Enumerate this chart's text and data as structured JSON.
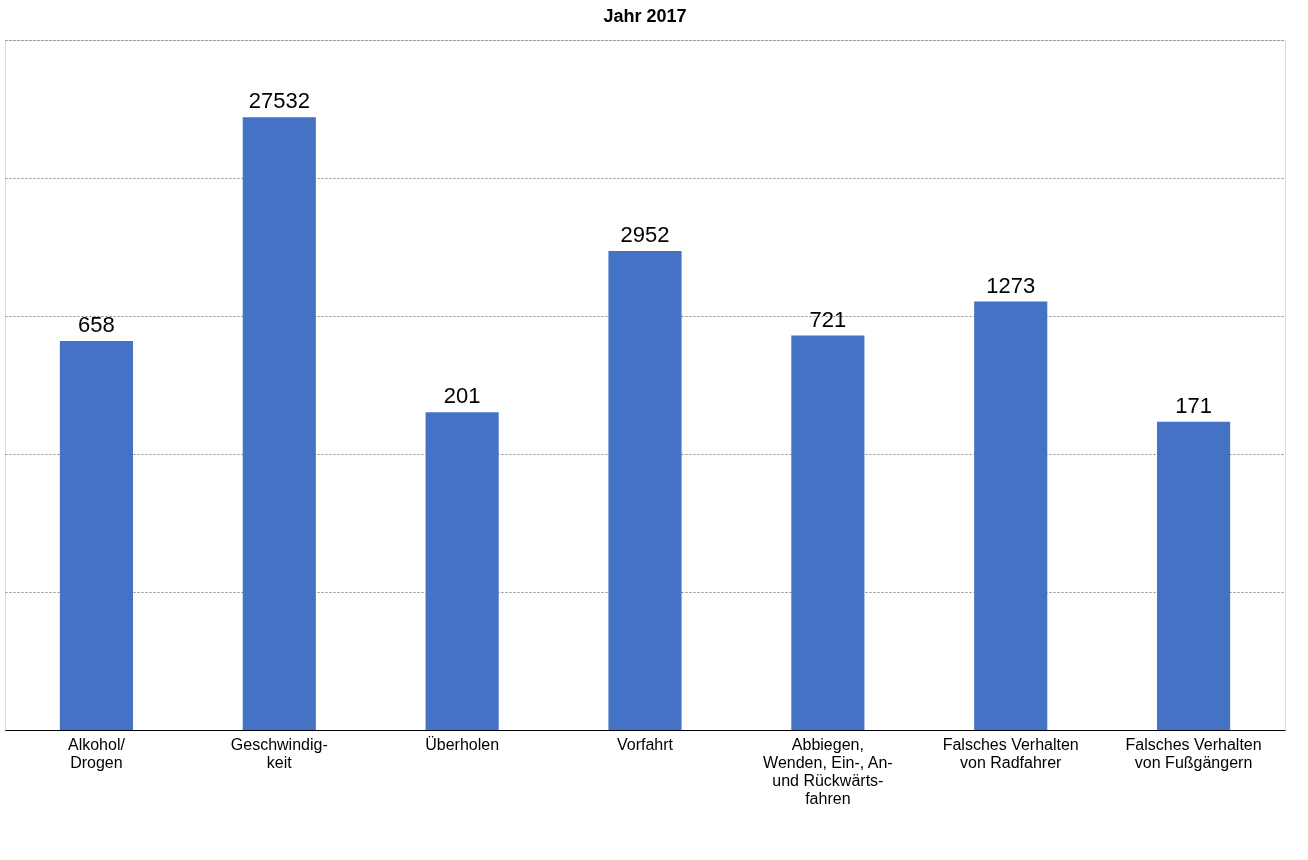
{
  "chart_data": {
    "type": "bar",
    "title": "Jahr 2017",
    "categories": [
      "Alkohol/\nDrogen",
      "Geschwindig-\nkeit",
      "Überholen",
      "Vorfahrt",
      "Abbiegen,\nWenden, Ein-, An-\nund Rückwärts-\nfahren",
      "Falsches Verhalten\nvon Radfahrer",
      "Falsches Verhalten\nvon Fußgängern"
    ],
    "values": [
      658,
      27532,
      201,
      2952,
      721,
      1273,
      171
    ],
    "color": "#4472c4",
    "log": true,
    "ylim": [
      1,
      100000
    ],
    "yticks": [
      {
        "value": 1,
        "label": null
      },
      {
        "value": 10,
        "label": null
      },
      {
        "value": 100,
        "label": null
      },
      {
        "value": 1000,
        "label": null
      },
      {
        "value": 10000,
        "label": null
      },
      {
        "value": 100000,
        "label": null
      }
    ],
    "grid": "y",
    "data_labels": true,
    "tick_labels": "x"
  }
}
